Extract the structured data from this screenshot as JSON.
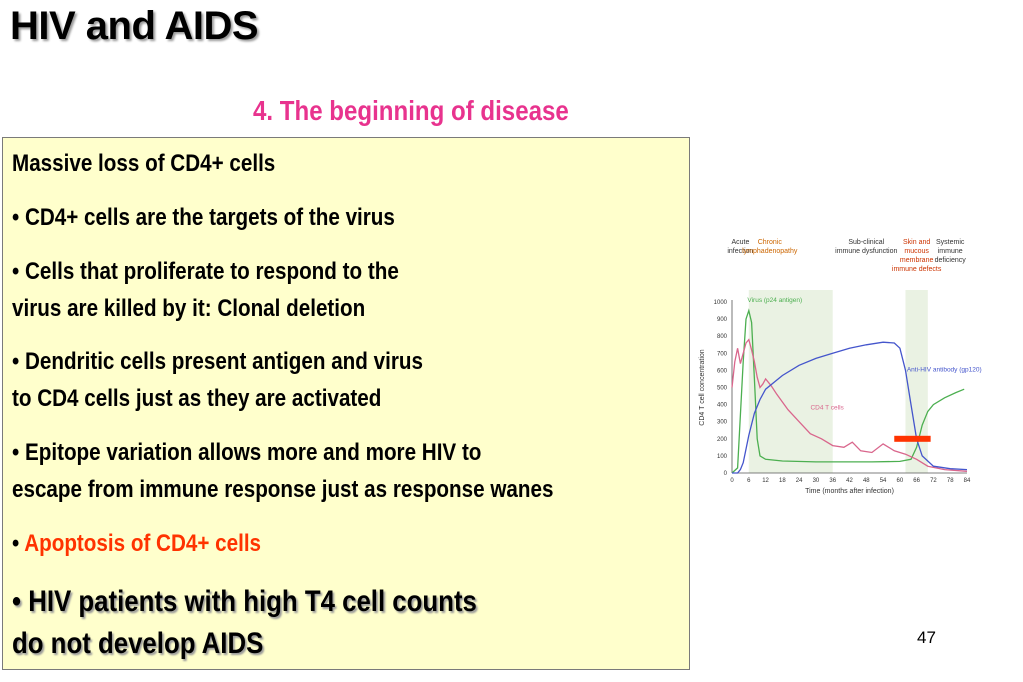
{
  "slide": {
    "title": "HIV and AIDS",
    "subtitle": "4.  The beginning of disease",
    "page_number": "47"
  },
  "content": {
    "heading": "Massive loss of CD4+ cells",
    "b1": "• CD4+ cells are the targets of the virus",
    "b2_l1": "•  Cells that proliferate to respond to the",
    "b2_l2": " virus are killed by it: Clonal deletion",
    "b3_l1": "• Dendritic cells present antigen and virus",
    "b3_l2": " to CD4 cells just as they are activated",
    "b4_l1": "• Epitope variation allows more and more HIV to",
    "b4_l2": "escape from immune response just as response wanes",
    "b5_bullet": "• ",
    "b5": "Apoptosis of CD4+ cells",
    "b6_l1": "• HIV patients with high T4 cell counts",
    "b6_l2": " do not develop AIDS"
  },
  "chart_data": {
    "type": "line",
    "xlabel": "Time (months after infection)",
    "ylabel": "CD4 T cell concentration",
    "x_ticks": [
      0,
      6,
      12,
      18,
      24,
      30,
      36,
      42,
      48,
      54,
      60,
      66,
      72,
      78,
      84
    ],
    "y_ticks": [
      0,
      100,
      200,
      300,
      400,
      500,
      600,
      700,
      800,
      900,
      1000
    ],
    "xlim": [
      0,
      84
    ],
    "ylim": [
      0,
      1000
    ],
    "phases": [
      {
        "label_lines": [
          "Acute",
          "infection"
        ],
        "color": "#333333",
        "x_center": 3
      },
      {
        "label_lines": [
          "Chronic",
          "lymphadenopathy"
        ],
        "color": "#cc6600",
        "x_center": 13.5,
        "shaded_x": [
          6,
          36
        ]
      },
      {
        "label_lines": [
          "Sub-clinical",
          "immune dysfunction"
        ],
        "color": "#333333",
        "x_center": 48
      },
      {
        "label_lines": [
          "Skin and",
          "mucous",
          "membrane",
          "immune defects"
        ],
        "color": "#cc3300",
        "x_center": 66,
        "shaded_x": [
          62,
          70
        ]
      },
      {
        "label_lines": [
          "Systemic",
          "immune",
          "deficiency"
        ],
        "color": "#333333",
        "x_center": 78
      }
    ],
    "series": [
      {
        "name": "Virus (p24 antigen)",
        "color": "#4caf50",
        "points": [
          [
            0,
            0
          ],
          [
            2,
            30
          ],
          [
            4,
            650
          ],
          [
            5,
            900
          ],
          [
            6,
            950
          ],
          [
            7,
            880
          ],
          [
            8,
            550
          ],
          [
            9,
            200
          ],
          [
            10,
            100
          ],
          [
            12,
            80
          ],
          [
            18,
            70
          ],
          [
            30,
            65
          ],
          [
            50,
            65
          ],
          [
            60,
            68
          ],
          [
            64,
            80
          ],
          [
            66,
            150
          ],
          [
            68,
            280
          ],
          [
            70,
            360
          ],
          [
            72,
            400
          ],
          [
            76,
            440
          ],
          [
            80,
            470
          ],
          [
            83,
            490
          ]
        ]
      },
      {
        "name": "CD4 T cells",
        "color": "#d9668c",
        "points": [
          [
            0,
            500
          ],
          [
            1,
            650
          ],
          [
            2,
            730
          ],
          [
            3,
            640
          ],
          [
            4,
            700
          ],
          [
            5,
            760
          ],
          [
            6,
            780
          ],
          [
            7,
            720
          ],
          [
            8,
            650
          ],
          [
            9,
            560
          ],
          [
            10,
            500
          ],
          [
            11,
            520
          ],
          [
            12,
            550
          ],
          [
            14,
            510
          ],
          [
            16,
            460
          ],
          [
            20,
            370
          ],
          [
            24,
            300
          ],
          [
            28,
            230
          ],
          [
            32,
            200
          ],
          [
            36,
            160
          ],
          [
            40,
            150
          ],
          [
            43,
            180
          ],
          [
            46,
            130
          ],
          [
            50,
            120
          ],
          [
            54,
            170
          ],
          [
            58,
            130
          ],
          [
            62,
            110
          ],
          [
            66,
            80
          ],
          [
            70,
            40
          ],
          [
            76,
            20
          ],
          [
            84,
            10
          ]
        ]
      },
      {
        "name": "Anti-HIV antibody (gp120)",
        "color": "#4455cc",
        "points": [
          [
            0,
            0
          ],
          [
            2,
            0
          ],
          [
            3,
            20
          ],
          [
            4,
            60
          ],
          [
            5,
            140
          ],
          [
            6,
            220
          ],
          [
            8,
            350
          ],
          [
            10,
            430
          ],
          [
            12,
            490
          ],
          [
            18,
            570
          ],
          [
            24,
            630
          ],
          [
            30,
            670
          ],
          [
            36,
            700
          ],
          [
            42,
            730
          ],
          [
            48,
            750
          ],
          [
            54,
            765
          ],
          [
            58,
            760
          ],
          [
            60,
            730
          ],
          [
            62,
            600
          ],
          [
            64,
            400
          ],
          [
            66,
            200
          ],
          [
            68,
            100
          ],
          [
            72,
            40
          ],
          [
            78,
            25
          ],
          [
            84,
            20
          ]
        ]
      }
    ],
    "annotation_bar": {
      "color": "#ff3300",
      "x_range": [
        58,
        71
      ],
      "y": 200
    }
  }
}
